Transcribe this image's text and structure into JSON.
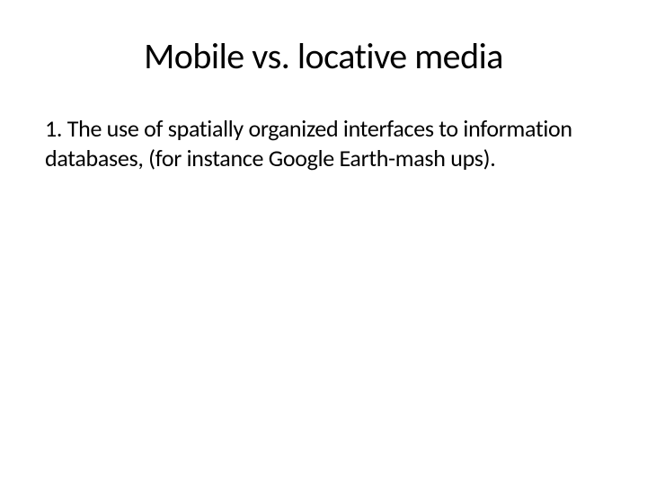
{
  "slide": {
    "title": "Mobile vs. locative media",
    "body": "1. The use of spatially organized interfaces to information databases, (for instance Google Earth-mash ups).",
    "title_fontsize": 40,
    "body_fontsize": 26,
    "title_color": "#000000",
    "body_color": "#000000",
    "background_color": "#ffffff",
    "font_family": "Calibri"
  }
}
